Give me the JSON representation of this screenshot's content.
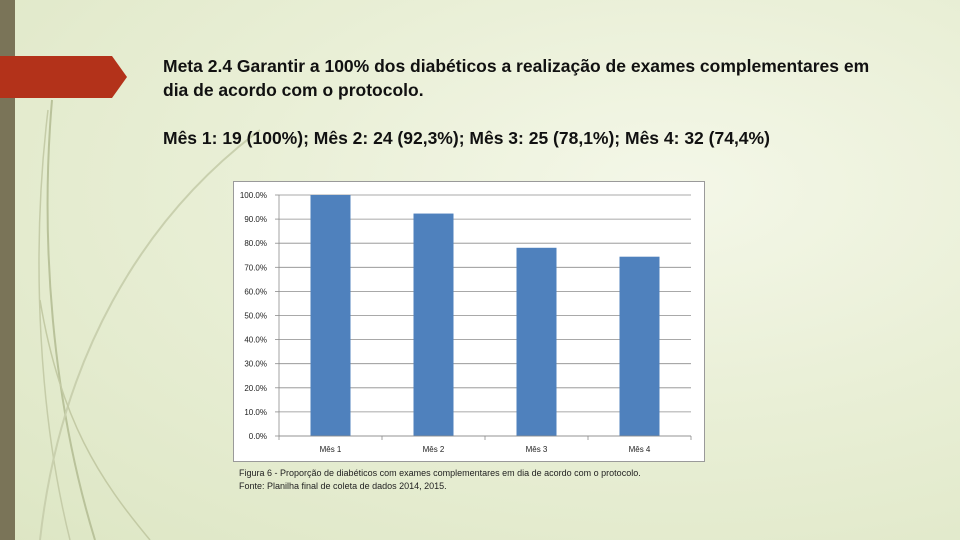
{
  "slide": {
    "title": "Meta 2.4 Garantir a 100% dos diabéticos a realização de exames complementares em dia de acordo com o protocolo.",
    "summary": "Mês 1: 19 (100%); Mês 2: 24 (92,3%); Mês 3: 25 (78,1%); Mês 4: 32 (74,4%)",
    "caption_line1": "Figura 6 - Proporção de diabéticos com exames complementares em dia de acordo com o protocolo.",
    "caption_line2": "Fonte: Planilha final de coleta de dados 2014, 2015."
  },
  "colors": {
    "bar": "#4f81bd",
    "accent_tab": "#b3321a",
    "side_bar": "#7a7458"
  },
  "chart_data": {
    "type": "bar",
    "categories": [
      "Mês 1",
      "Mês 2",
      "Mês 3",
      "Mês 4"
    ],
    "values": [
      100.0,
      92.3,
      78.1,
      74.4
    ],
    "yticks": [
      "0.0%",
      "10.0%",
      "20.0%",
      "30.0%",
      "40.0%",
      "50.0%",
      "60.0%",
      "70.0%",
      "80.0%",
      "90.0%",
      "100.0%"
    ],
    "ylim": [
      0,
      100
    ],
    "grid": true,
    "title": "",
    "xlabel": "",
    "ylabel": ""
  }
}
